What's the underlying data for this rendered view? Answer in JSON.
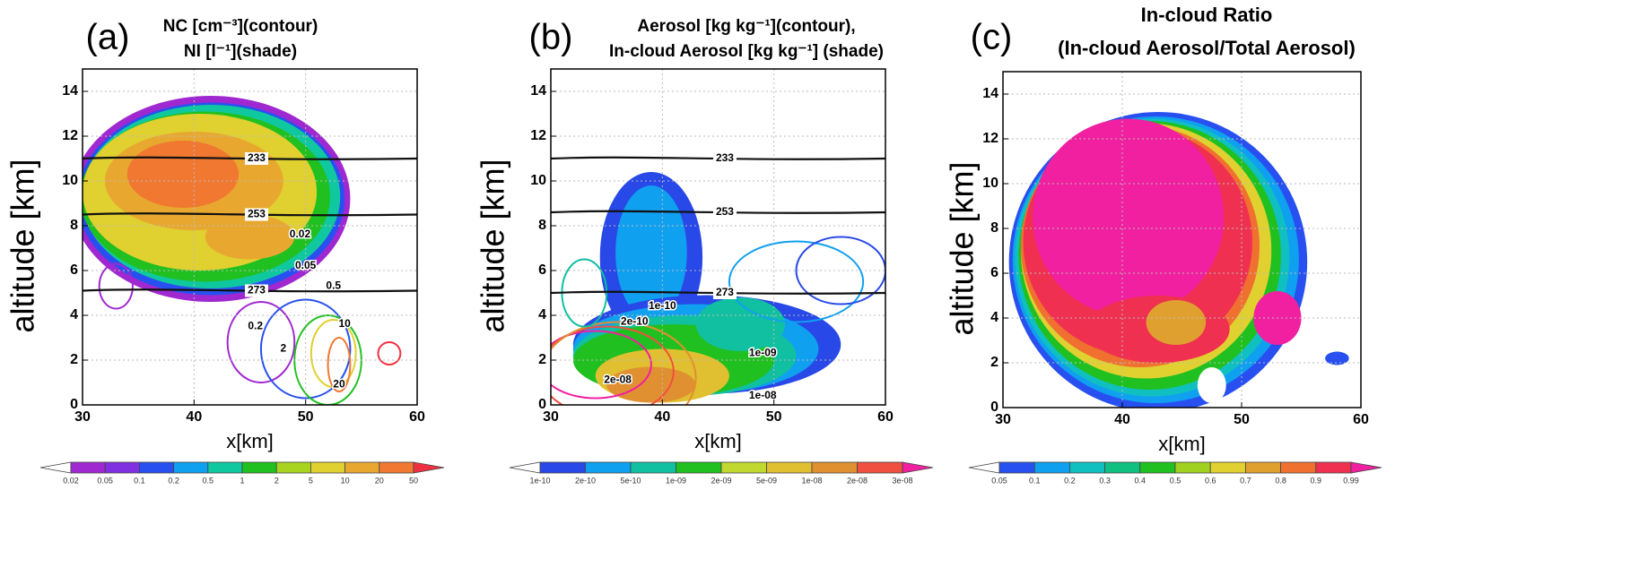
{
  "chart_data": [
    {
      "type": "contour",
      "panel_label": "(a)",
      "title_lines": [
        "NC [cm⁻³](contour)",
        "NI [l⁻¹](shade)"
      ],
      "xlabel": "x[km]",
      "ylabel": "altitude [km]",
      "xlim": [
        30,
        60
      ],
      "xticks": [
        30,
        40,
        50,
        60
      ],
      "ylim": [
        0,
        15
      ],
      "yticks": [
        0,
        2,
        4,
        6,
        8,
        10,
        12,
        14
      ],
      "grid": true,
      "colorbar": {
        "levels": [
          0.02,
          0.05,
          0.1,
          0.2,
          0.5,
          1,
          2,
          5,
          10,
          20,
          50
        ],
        "colors": [
          "#ffffff",
          "#a028d0",
          "#8030e0",
          "#2850f0",
          "#10a0f0",
          "#10c8a0",
          "#20c020",
          "#a8d420",
          "#e0d030",
          "#e8a830",
          "#f07830",
          "#f03040",
          "#f020a0"
        ]
      },
      "isotherms": [
        {
          "value": 233,
          "altitude": 11
        },
        {
          "value": 253,
          "altitude": 8.5
        },
        {
          "value": 273,
          "altitude": 5.1
        }
      ],
      "annotations": [
        {
          "text": "0.02",
          "x": 49.5,
          "y": 7.6
        },
        {
          "text": "0.05",
          "x": 50,
          "y": 6.2
        },
        {
          "text": "0.5",
          "x": 52.5,
          "y": 5.3
        },
        {
          "text": "0.2",
          "x": 45.5,
          "y": 3.5
        },
        {
          "text": "10",
          "x": 53.5,
          "y": 3.6
        },
        {
          "text": "20",
          "x": 53,
          "y": 0.9
        },
        {
          "text": "2",
          "x": 48,
          "y": 2.5
        }
      ]
    },
    {
      "type": "contour",
      "panel_label": "(b)",
      "title_lines": [
        "Aerosol [kg kg⁻¹](contour),",
        "In-cloud Aerosol [kg kg⁻¹] (shade)"
      ],
      "xlabel": "x[km]",
      "ylabel": "altitude [km]",
      "xlim": [
        30,
        60
      ],
      "xticks": [
        30,
        40,
        50,
        60
      ],
      "ylim": [
        0,
        15
      ],
      "yticks": [
        0,
        2,
        4,
        6,
        8,
        10,
        12,
        14
      ],
      "grid": true,
      "colorbar": {
        "levels": [
          {
            "value": 1e-10,
            "label": "1e-10"
          },
          {
            "value": 2e-10,
            "label": "2e-10"
          },
          {
            "value": 5e-10,
            "label": "5e-10"
          },
          {
            "value": 1e-09,
            "label": "1e-09"
          },
          {
            "value": 2e-09,
            "label": "2e-09"
          },
          {
            "value": 5e-09,
            "label": "5e-09"
          },
          {
            "value": 1e-08,
            "label": "1e-08"
          },
          {
            "value": 2e-08,
            "label": "2e-08"
          },
          {
            "value": 3e-08,
            "label": "3e-08"
          }
        ],
        "colors": [
          "#ffffff",
          "#2848e8",
          "#10a0f0",
          "#10c0a0",
          "#20c020",
          "#c0d830",
          "#e0c030",
          "#e09030",
          "#f05040",
          "#f020a0"
        ]
      },
      "isotherms": [
        {
          "value": 233,
          "altitude": 11
        },
        {
          "value": 253,
          "altitude": 8.6
        },
        {
          "value": 273,
          "altitude": 5
        }
      ],
      "annotations": [
        {
          "text": "1e-10",
          "x": 40,
          "y": 4.4
        },
        {
          "text": "2e-10",
          "x": 37.5,
          "y": 3.7
        },
        {
          "text": "1e-09",
          "x": 49,
          "y": 2.3
        },
        {
          "text": "2e-08",
          "x": 36,
          "y": 1.1
        },
        {
          "text": "1e-08",
          "x": 49,
          "y": 0.4
        }
      ]
    },
    {
      "type": "contour",
      "panel_label": "(c)",
      "title_lines": [
        "In-cloud Ratio",
        "(In-cloud Aerosol/Total Aerosol)"
      ],
      "xlabel": "x[km]",
      "ylabel": "altitude [km]",
      "xlim": [
        30,
        60
      ],
      "xticks": [
        30,
        40,
        50,
        60
      ],
      "ylim": [
        0,
        15
      ],
      "yticks": [
        0,
        2,
        4,
        6,
        8,
        10,
        12,
        14
      ],
      "grid": true,
      "colorbar": {
        "levels": [
          0.05,
          0.1,
          0.2,
          0.3,
          0.4,
          0.5,
          0.6,
          0.7,
          0.8,
          0.9,
          0.99
        ],
        "colors": [
          "#ffffff",
          "#2850f0",
          "#10a0f0",
          "#10c0c0",
          "#10c080",
          "#20c020",
          "#a0d020",
          "#e0d030",
          "#e0a030",
          "#f07030",
          "#f03050",
          "#f020a0"
        ]
      }
    }
  ]
}
